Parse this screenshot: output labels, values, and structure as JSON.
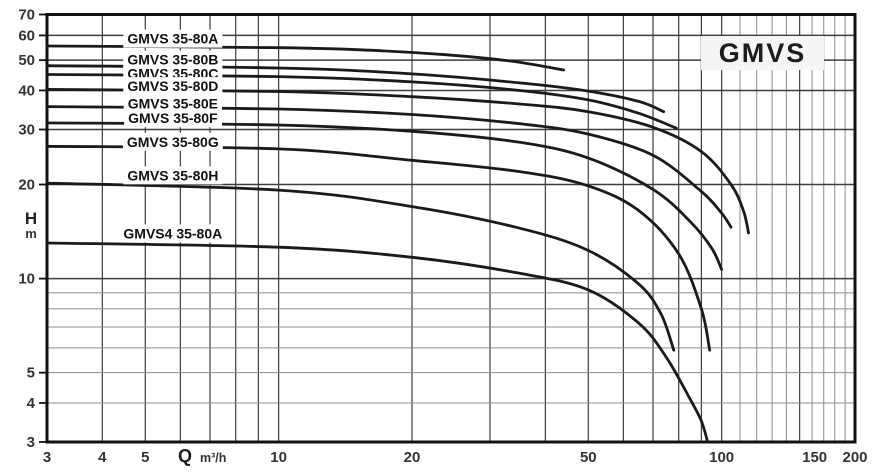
{
  "chart_data": {
    "type": "line",
    "title": "GMVS",
    "xlabel": "Q",
    "x_unit": "m³/h",
    "ylabel": "H",
    "y_unit": "m",
    "x_scale": "log",
    "y_scale": "log",
    "xlim": [
      3,
      200
    ],
    "ylim": [
      3,
      70
    ],
    "x_ticks_labeled": [
      3,
      4,
      5,
      10,
      20,
      50,
      100,
      150,
      200
    ],
    "y_ticks_labeled": [
      3,
      4,
      5,
      10,
      20,
      30,
      40,
      50,
      60,
      70
    ],
    "x_gridlines_major": [
      4,
      5,
      6,
      7,
      8,
      9,
      10,
      20,
      30,
      40,
      50,
      60,
      70,
      80,
      90,
      100,
      150
    ],
    "x_gridlines_minor": [
      110,
      120,
      130,
      140,
      160,
      170,
      180,
      190
    ],
    "y_gridlines_major": [
      10,
      20,
      30,
      40,
      50,
      60,
      70
    ],
    "y_gridlines_minor": [
      4,
      5,
      6,
      7,
      8,
      9
    ],
    "grid": true,
    "legend_position": "labels-on-curves",
    "series": [
      {
        "name": "GMVS 35-80A",
        "label_at": {
          "q": 5.77,
          "h": 58.6
        },
        "points": [
          [
            3,
            55.5
          ],
          [
            10,
            54.8
          ],
          [
            16,
            53.8
          ],
          [
            24,
            52.0
          ],
          [
            34,
            49.5
          ],
          [
            44,
            46.5
          ]
        ]
      },
      {
        "name": "GMVS 35-80B",
        "label_at": {
          "q": 5.77,
          "h": 50.2
        },
        "points": [
          [
            3,
            48.0
          ],
          [
            10,
            47.2
          ],
          [
            20,
            45.2
          ],
          [
            35,
            42.3
          ],
          [
            50,
            39.8
          ],
          [
            65,
            36.9
          ],
          [
            74,
            34.2
          ]
        ]
      },
      {
        "name": "GMVS 35-80C",
        "label_at": {
          "q": 5.77,
          "h": 45.3
        },
        "points": [
          [
            3,
            45.0
          ],
          [
            10,
            44.3
          ],
          [
            20,
            42.6
          ],
          [
            35,
            40.0
          ],
          [
            50,
            37.3
          ],
          [
            65,
            33.8
          ],
          [
            79,
            30.3
          ]
        ]
      },
      {
        "name": "GMVS 35-80D",
        "label_at": {
          "q": 5.77,
          "h": 41.3
        },
        "points": [
          [
            3,
            40.3
          ],
          [
            10,
            39.7
          ],
          [
            20,
            38.2
          ],
          [
            35,
            36.2
          ],
          [
            50,
            34.2
          ],
          [
            70,
            30.5
          ],
          [
            90,
            25.5
          ],
          [
            105,
            20.0
          ],
          [
            112,
            16.5
          ],
          [
            115,
            14.0
          ]
        ]
      },
      {
        "name": "GMVS 35-80E",
        "label_at": {
          "q": 5.77,
          "h": 36.3
        },
        "points": [
          [
            3,
            35.5
          ],
          [
            10,
            34.9
          ],
          [
            20,
            33.5
          ],
          [
            35,
            31.3
          ],
          [
            50,
            29.0
          ],
          [
            70,
            24.8
          ],
          [
            90,
            19.0
          ],
          [
            100,
            16.2
          ],
          [
            105,
            14.6
          ]
        ]
      },
      {
        "name": "GMVS 35-80F",
        "label_at": {
          "q": 5.77,
          "h": 32.6
        },
        "points": [
          [
            3,
            31.5
          ],
          [
            10,
            31.0
          ],
          [
            20,
            29.6
          ],
          [
            35,
            27.3
          ],
          [
            50,
            24.3
          ],
          [
            70,
            19.3
          ],
          [
            85,
            15.2
          ],
          [
            95,
            12.5
          ],
          [
            100,
            10.7
          ]
        ]
      },
      {
        "name": "GMVS 35-80G",
        "label_at": {
          "q": 5.77,
          "h": 27.4
        },
        "points": [
          [
            3,
            26.5
          ],
          [
            10,
            26.0
          ],
          [
            20,
            23.9
          ],
          [
            35,
            22.0
          ],
          [
            50,
            19.8
          ],
          [
            65,
            16.5
          ],
          [
            80,
            12.0
          ],
          [
            90,
            8.0
          ],
          [
            94,
            5.9
          ]
        ]
      },
      {
        "name": "GMVS 35-80H",
        "label_at": {
          "q": 5.77,
          "h": 21.4
        },
        "points": [
          [
            3,
            20.2
          ],
          [
            10,
            19.2
          ],
          [
            20,
            17.0
          ],
          [
            35,
            14.5
          ],
          [
            50,
            12.3
          ],
          [
            65,
            9.6
          ],
          [
            73,
            7.7
          ],
          [
            78,
            5.9
          ]
        ]
      },
      {
        "name": "GMVS4 35-80A",
        "label_at": {
          "q": 5.77,
          "h": 13.95
        },
        "points": [
          [
            3,
            13.0
          ],
          [
            10,
            12.6
          ],
          [
            20,
            11.7
          ],
          [
            35,
            10.4
          ],
          [
            50,
            9.2
          ],
          [
            65,
            7.2
          ],
          [
            75,
            5.6
          ],
          [
            85,
            4.1
          ],
          [
            90,
            3.5
          ],
          [
            93,
            3.0
          ]
        ]
      }
    ],
    "colors": {
      "curve": "#1a1a1a",
      "grid_major": "#3d3d3d",
      "grid_minor": "#8c8c8c",
      "border": "#111111",
      "tick_text": "#333333",
      "label_text": "#111111",
      "label_bg": "#ffffff",
      "title_bg": "#f5f5f5",
      "background": "#ffffff"
    }
  }
}
